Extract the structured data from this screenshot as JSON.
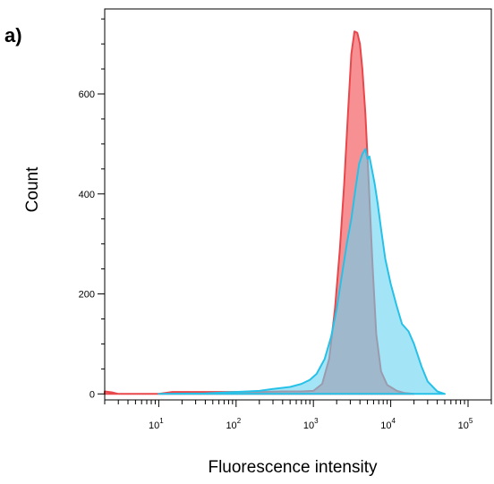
{
  "chart_data": {
    "type": "area",
    "panel_label": "a)",
    "xlabel": "Fluorescence intensity",
    "ylabel": "Count",
    "xscale": "log",
    "xlim": [
      2,
      200000
    ],
    "ylim": [
      -12,
      770
    ],
    "x_ticks": [
      {
        "value": 10,
        "base": "10",
        "exp": "1"
      },
      {
        "value": 100,
        "base": "10",
        "exp": "2"
      },
      {
        "value": 1000,
        "base": "10",
        "exp": "3"
      },
      {
        "value": 10000,
        "base": "10",
        "exp": "4"
      },
      {
        "value": 100000,
        "base": "10",
        "exp": "5"
      }
    ],
    "y_ticks": [
      {
        "value": 0,
        "label": "0"
      },
      {
        "value": 200,
        "label": "200"
      },
      {
        "value": 400,
        "label": "400"
      },
      {
        "value": 600,
        "label": "600"
      }
    ],
    "grid": false,
    "legend": "none",
    "series": [
      {
        "color": "#e8474b",
        "fill": "#f47d80",
        "x": [
          2,
          2.5,
          3,
          10,
          15,
          40,
          100,
          200,
          400,
          700,
          1000,
          1300,
          1600,
          1900,
          2200,
          2500,
          2800,
          3100,
          3400,
          3700,
          4000,
          4300,
          4700,
          5200,
          5800,
          6500,
          7500,
          9000,
          12000,
          15000,
          20000
        ],
        "y": [
          5,
          3,
          0,
          0,
          4,
          4,
          4,
          4,
          5,
          5,
          6,
          20,
          70,
          170,
          290,
          420,
          560,
          680,
          725,
          722,
          700,
          650,
          560,
          420,
          260,
          120,
          45,
          18,
          6,
          2,
          0
        ]
      },
      {
        "color": "#27c1e8",
        "fill": "#66d3f0",
        "x": [
          10,
          40,
          100,
          200,
          300,
          500,
          700,
          900,
          1100,
          1400,
          1700,
          2000,
          2300,
          2700,
          3100,
          3500,
          3900,
          4300,
          4700,
          5000,
          5300,
          5700,
          6200,
          6800,
          7500,
          8500,
          10000,
          12000,
          14000,
          17000,
          20000,
          25000,
          30000,
          40000,
          50000
        ],
        "y": [
          0,
          1,
          4,
          6,
          10,
          14,
          20,
          28,
          40,
          70,
          115,
          170,
          230,
          300,
          350,
          410,
          460,
          480,
          490,
          470,
          475,
          450,
          420,
          380,
          330,
          270,
          220,
          175,
          140,
          125,
          100,
          55,
          25,
          5,
          0
        ]
      }
    ]
  }
}
